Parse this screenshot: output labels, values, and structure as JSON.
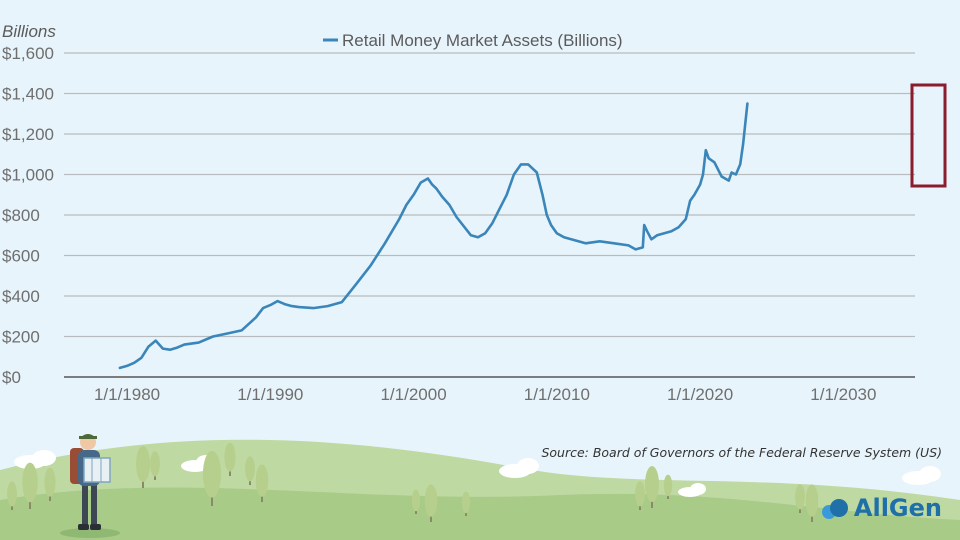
{
  "chart_data": {
    "type": "line",
    "unit_label": "Billions",
    "legend": "Retail Money Market Assets (Billions)",
    "y_ticks": [
      "$0",
      "$200",
      "$400",
      "$600",
      "$800",
      "$1,000",
      "$1,200",
      "$1,400",
      "$1,600"
    ],
    "x_ticks": [
      "1/1/1980",
      "1/1/1990",
      "1/1/2000",
      "1/1/2010",
      "1/1/2020",
      "1/1/2030"
    ],
    "ylim": [
      0,
      1600
    ],
    "xlim": [
      1975.6,
      2035.0
    ],
    "grid": true,
    "series": [
      {
        "name": "Retail Money Market Assets (Billions)",
        "color": "#3a86ba",
        "x": [
          1979.5,
          1980.0,
          1980.5,
          1981.0,
          1981.5,
          1982.0,
          1982.5,
          1983.0,
          1983.5,
          1984.0,
          1984.5,
          1985.0,
          1986.0,
          1987.0,
          1988.0,
          1989.0,
          1989.5,
          1990.0,
          1990.5,
          1991.0,
          1991.5,
          1992.0,
          1993.0,
          1994.0,
          1995.0,
          1996.0,
          1997.0,
          1998.0,
          1999.0,
          1999.5,
          2000.0,
          2000.5,
          2001.0,
          2001.3,
          2001.6,
          2002.0,
          2002.5,
          2003.0,
          2004.0,
          2004.5,
          2005.0,
          2005.5,
          2006.0,
          2006.5,
          2007.0,
          2007.5,
          2008.0,
          2008.3,
          2008.6,
          2009.0,
          2009.3,
          2009.6,
          2010.0,
          2010.5,
          2011.0,
          2012.0,
          2013.0,
          2014.0,
          2015.0,
          2015.5,
          2016.0,
          2016.1,
          2016.3,
          2016.6,
          2017.0,
          2017.5,
          2018.0,
          2018.5,
          2019.0,
          2019.3,
          2019.6,
          2020.0,
          2020.2,
          2020.4,
          2020.6,
          2021.0,
          2021.5,
          2022.0,
          2022.2,
          2022.5,
          2022.8,
          2023.0,
          2023.3
        ],
        "values": [
          45,
          55,
          70,
          95,
          150,
          180,
          140,
          135,
          145,
          160,
          165,
          170,
          200,
          215,
          230,
          295,
          340,
          355,
          375,
          360,
          350,
          345,
          340,
          350,
          370,
          460,
          550,
          660,
          780,
          850,
          900,
          960,
          980,
          950,
          930,
          890,
          850,
          790,
          700,
          690,
          710,
          760,
          830,
          900,
          1000,
          1050,
          1050,
          1030,
          1010,
          900,
          800,
          750,
          710,
          690,
          680,
          660,
          670,
          660,
          650,
          630,
          640,
          750,
          720,
          680,
          700,
          710,
          720,
          740,
          780,
          870,
          900,
          950,
          1000,
          1120,
          1080,
          1060,
          990,
          970,
          1010,
          1000,
          1050,
          1150,
          1350
        ]
      }
    ]
  },
  "footer": {
    "source": "Source: Board of Governors of the Federal Reserve System (US)",
    "brand": "AllGen"
  }
}
